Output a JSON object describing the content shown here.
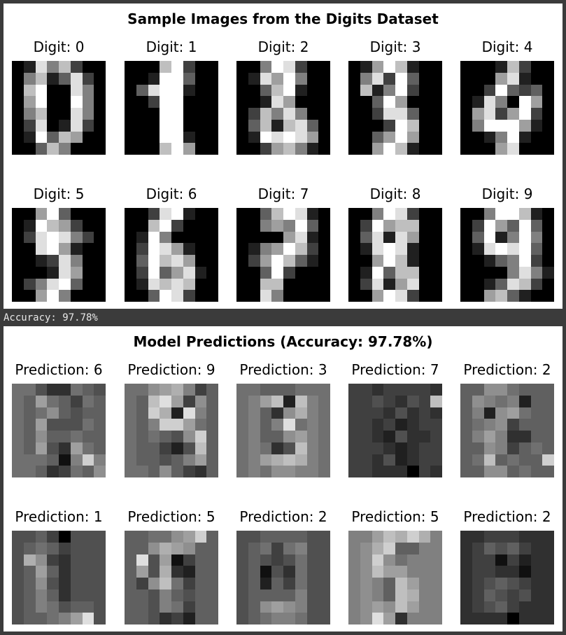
{
  "figure1": {
    "title": "Sample Images from the Digits Dataset",
    "panels": [
      {
        "label": "Digit: 0",
        "pixels": [
          0,
          2,
          14,
          8,
          12,
          4,
          0,
          0,
          0,
          8,
          12,
          2,
          6,
          14,
          4,
          0,
          0,
          12,
          16,
          0,
          0,
          14,
          8,
          0,
          0,
          10,
          16,
          0,
          0,
          16,
          8,
          0,
          0,
          8,
          12,
          0,
          0,
          14,
          8,
          0,
          0,
          4,
          14,
          0,
          2,
          14,
          4,
          0,
          0,
          2,
          16,
          6,
          12,
          10,
          0,
          0,
          0,
          0,
          6,
          12,
          8,
          0,
          0,
          0
        ]
      },
      {
        "label": "Digit: 1",
        "pixels": [
          0,
          0,
          0,
          12,
          16,
          4,
          0,
          0,
          0,
          0,
          2,
          16,
          16,
          6,
          0,
          0,
          0,
          6,
          14,
          16,
          16,
          2,
          0,
          0,
          0,
          0,
          4,
          16,
          16,
          0,
          0,
          0,
          0,
          0,
          0,
          16,
          16,
          0,
          0,
          0,
          0,
          0,
          0,
          16,
          16,
          0,
          0,
          0,
          0,
          0,
          0,
          16,
          16,
          2,
          0,
          0,
          0,
          0,
          0,
          12,
          16,
          10,
          0,
          0
        ]
      },
      {
        "label": "Digit: 2",
        "pixels": [
          0,
          0,
          8,
          16,
          14,
          4,
          0,
          0,
          0,
          2,
          14,
          10,
          16,
          8,
          0,
          0,
          0,
          0,
          6,
          12,
          16,
          2,
          0,
          0,
          0,
          0,
          2,
          14,
          10,
          0,
          0,
          0,
          0,
          4,
          12,
          8,
          14,
          8,
          0,
          0,
          0,
          6,
          12,
          2,
          12,
          14,
          6,
          0,
          0,
          2,
          16,
          14,
          16,
          14,
          10,
          0,
          0,
          0,
          4,
          10,
          12,
          8,
          2,
          0
        ]
      },
      {
        "label": "Digit: 3",
        "pixels": [
          0,
          2,
          10,
          16,
          12,
          2,
          0,
          0,
          0,
          8,
          14,
          4,
          16,
          6,
          0,
          0,
          0,
          12,
          2,
          8,
          16,
          4,
          0,
          0,
          0,
          0,
          6,
          16,
          10,
          0,
          0,
          0,
          0,
          0,
          4,
          14,
          14,
          6,
          0,
          0,
          0,
          0,
          0,
          4,
          16,
          12,
          0,
          0,
          0,
          0,
          6,
          10,
          16,
          10,
          0,
          0,
          0,
          0,
          10,
          16,
          12,
          2,
          0,
          0
        ]
      },
      {
        "label": "Digit: 4",
        "pixels": [
          0,
          0,
          0,
          2,
          12,
          4,
          0,
          0,
          0,
          0,
          0,
          10,
          14,
          2,
          0,
          0,
          0,
          0,
          4,
          16,
          6,
          4,
          6,
          0,
          0,
          2,
          14,
          8,
          0,
          16,
          10,
          0,
          0,
          10,
          14,
          4,
          10,
          16,
          4,
          0,
          0,
          8,
          16,
          16,
          16,
          10,
          2,
          0,
          0,
          0,
          2,
          8,
          16,
          2,
          0,
          0,
          0,
          0,
          0,
          10,
          14,
          0,
          0,
          0
        ]
      },
      {
        "label": "Digit: 5",
        "pixels": [
          0,
          0,
          10,
          16,
          6,
          0,
          0,
          0,
          0,
          2,
          16,
          12,
          10,
          4,
          0,
          0,
          0,
          4,
          14,
          16,
          14,
          8,
          4,
          0,
          0,
          0,
          14,
          16,
          10,
          2,
          0,
          0,
          0,
          0,
          2,
          4,
          14,
          8,
          0,
          0,
          0,
          0,
          0,
          2,
          14,
          10,
          0,
          0,
          0,
          4,
          8,
          14,
          16,
          6,
          0,
          0,
          0,
          0,
          10,
          16,
          8,
          0,
          0,
          0
        ]
      },
      {
        "label": "Digit: 6",
        "pixels": [
          0,
          0,
          4,
          14,
          16,
          2,
          0,
          0,
          0,
          0,
          12,
          16,
          4,
          0,
          0,
          0,
          0,
          2,
          16,
          8,
          0,
          0,
          0,
          0,
          0,
          4,
          16,
          14,
          10,
          2,
          0,
          0,
          0,
          6,
          16,
          12,
          14,
          10,
          0,
          0,
          0,
          4,
          16,
          6,
          10,
          14,
          2,
          0,
          0,
          2,
          14,
          12,
          14,
          12,
          0,
          0,
          0,
          0,
          6,
          16,
          14,
          4,
          0,
          0
        ]
      },
      {
        "label": "Digit: 7",
        "pixels": [
          0,
          0,
          6,
          12,
          16,
          14,
          2,
          0,
          0,
          0,
          8,
          10,
          8,
          16,
          6,
          0,
          0,
          0,
          0,
          0,
          10,
          14,
          2,
          0,
          0,
          2,
          8,
          10,
          16,
          12,
          4,
          0,
          0,
          4,
          10,
          16,
          12,
          6,
          2,
          0,
          0,
          0,
          6,
          16,
          4,
          0,
          0,
          0,
          0,
          0,
          12,
          12,
          0,
          0,
          0,
          0,
          0,
          0,
          14,
          8,
          0,
          0,
          0,
          0
        ]
      },
      {
        "label": "Digit: 8",
        "pixels": [
          0,
          0,
          8,
          16,
          14,
          4,
          0,
          0,
          0,
          4,
          16,
          10,
          12,
          12,
          0,
          0,
          0,
          6,
          14,
          2,
          14,
          10,
          0,
          0,
          0,
          2,
          14,
          16,
          14,
          2,
          0,
          0,
          0,
          0,
          10,
          16,
          12,
          2,
          0,
          0,
          0,
          2,
          16,
          6,
          12,
          12,
          0,
          0,
          0,
          4,
          14,
          2,
          10,
          14,
          0,
          0,
          0,
          0,
          10,
          16,
          14,
          4,
          0,
          0
        ]
      },
      {
        "label": "Digit: 9",
        "pixels": [
          0,
          0,
          8,
          16,
          16,
          12,
          2,
          0,
          0,
          4,
          16,
          10,
          6,
          16,
          6,
          0,
          0,
          6,
          16,
          2,
          8,
          16,
          8,
          0,
          0,
          2,
          14,
          16,
          14,
          16,
          6,
          0,
          0,
          0,
          2,
          6,
          8,
          16,
          4,
          0,
          0,
          0,
          0,
          0,
          8,
          14,
          8,
          2,
          0,
          0,
          2,
          6,
          14,
          12,
          4,
          0,
          0,
          0,
          10,
          12,
          6,
          2,
          0,
          0
        ]
      }
    ]
  },
  "output_line": "Accuracy: 97.78%",
  "figure2": {
    "title": "Model Predictions (Accuracy: 97.78%)",
    "panels": [
      {
        "label": "Prediction: 6",
        "pixels": [
          7,
          7,
          5,
          3,
          3,
          7,
          6,
          5,
          7,
          6,
          10,
          7,
          6,
          4,
          7,
          6,
          7,
          6,
          7,
          9,
          6,
          5,
          6,
          6,
          7,
          6,
          10,
          5,
          5,
          5,
          7,
          6,
          7,
          6,
          9,
          6,
          6,
          7,
          6,
          6,
          7,
          6,
          10,
          5,
          3,
          10,
          7,
          6,
          7,
          7,
          7,
          6,
          1,
          8,
          13,
          8,
          7,
          7,
          6,
          3,
          4,
          7,
          6,
          9
        ]
      },
      {
        "label": "Prediction: 9",
        "pixels": [
          7,
          7,
          9,
          10,
          11,
          8,
          4,
          6,
          7,
          6,
          12,
          14,
          10,
          4,
          9,
          6,
          7,
          6,
          13,
          11,
          2,
          14,
          8,
          6,
          7,
          6,
          8,
          13,
          13,
          10,
          7,
          6,
          7,
          6,
          7,
          6,
          5,
          9,
          13,
          6,
          7,
          6,
          6,
          4,
          2,
          5,
          12,
          6,
          7,
          6,
          6,
          5,
          6,
          8,
          10,
          6,
          7,
          7,
          6,
          9,
          6,
          4,
          3,
          6
        ]
      },
      {
        "label": "Prediction: 3",
        "pixels": [
          7,
          7,
          6,
          6,
          6,
          7,
          7,
          7,
          7,
          8,
          10,
          12,
          2,
          12,
          8,
          7,
          7,
          8,
          6,
          3,
          9,
          11,
          8,
          7,
          7,
          8,
          6,
          8,
          14,
          7,
          8,
          7,
          7,
          8,
          6,
          6,
          9,
          10,
          8,
          7,
          7,
          8,
          7,
          3,
          5,
          12,
          8,
          7,
          7,
          8,
          10,
          11,
          12,
          11,
          8,
          7,
          7,
          8,
          7,
          9,
          9,
          8,
          8,
          7
        ]
      },
      {
        "label": "Prediction: 7",
        "pixels": [
          4,
          4,
          3,
          4,
          4,
          4,
          4,
          3,
          4,
          4,
          5,
          4,
          3,
          5,
          4,
          12,
          4,
          4,
          4,
          3,
          5,
          3,
          4,
          3,
          4,
          4,
          3,
          4,
          2,
          3,
          4,
          4,
          4,
          4,
          3,
          2,
          5,
          3,
          3,
          4,
          4,
          4,
          4,
          3,
          2,
          3,
          4,
          4,
          4,
          4,
          3,
          5,
          2,
          3,
          4,
          4,
          4,
          4,
          3,
          3,
          3,
          0,
          4,
          3
        ]
      },
      {
        "label": "Prediction: 2",
        "pixels": [
          6,
          6,
          9,
          9,
          7,
          6,
          6,
          6,
          6,
          9,
          8,
          7,
          8,
          2,
          6,
          6,
          6,
          8,
          2,
          9,
          10,
          7,
          6,
          6,
          6,
          7,
          8,
          9,
          4,
          6,
          6,
          6,
          6,
          8,
          10,
          8,
          3,
          3,
          6,
          6,
          6,
          6,
          9,
          8,
          4,
          6,
          7,
          6,
          6,
          7,
          12,
          6,
          7,
          6,
          6,
          13,
          6,
          6,
          9,
          9,
          6,
          7,
          6,
          6
        ]
      },
      {
        "label": "Prediction: 1",
        "pixels": [
          5,
          5,
          6,
          4,
          0,
          5,
          5,
          5,
          5,
          6,
          7,
          6,
          4,
          5,
          5,
          5,
          5,
          11,
          9,
          4,
          3,
          5,
          5,
          5,
          5,
          6,
          10,
          6,
          3,
          5,
          5,
          5,
          5,
          6,
          9,
          5,
          3,
          5,
          5,
          5,
          5,
          6,
          8,
          6,
          3,
          5,
          5,
          5,
          5,
          6,
          8,
          7,
          5,
          6,
          6,
          5,
          5,
          6,
          6,
          7,
          8,
          10,
          14,
          5
        ]
      },
      {
        "label": "Prediction: 5",
        "pixels": [
          6,
          6,
          7,
          7,
          9,
          10,
          13,
          6,
          6,
          6,
          9,
          11,
          10,
          9,
          6,
          6,
          6,
          14,
          5,
          10,
          1,
          4,
          6,
          6,
          6,
          10,
          5,
          11,
          3,
          2,
          6,
          6,
          6,
          4,
          9,
          12,
          7,
          4,
          6,
          6,
          6,
          6,
          5,
          8,
          6,
          5,
          6,
          6,
          6,
          6,
          5,
          8,
          7,
          4,
          6,
          6,
          6,
          6,
          5,
          3,
          4,
          2,
          6,
          6
        ]
      },
      {
        "label": "Prediction: 2",
        "pixels": [
          5,
          5,
          6,
          6,
          6,
          6,
          5,
          5,
          5,
          6,
          7,
          4,
          7,
          8,
          5,
          5,
          5,
          6,
          5,
          4,
          5,
          7,
          5,
          5,
          5,
          6,
          1,
          5,
          3,
          7,
          5,
          5,
          5,
          6,
          2,
          6,
          4,
          7,
          5,
          5,
          5,
          6,
          6,
          6,
          6,
          8,
          5,
          5,
          5,
          6,
          9,
          10,
          9,
          8,
          5,
          5,
          5,
          6,
          7,
          8,
          8,
          7,
          5,
          5
        ]
      },
      {
        "label": "Prediction: 5",
        "pixels": [
          8,
          8,
          10,
          12,
          11,
          13,
          11,
          8,
          8,
          9,
          11,
          13,
          6,
          6,
          8,
          8,
          8,
          9,
          13,
          9,
          7,
          8,
          8,
          8,
          8,
          9,
          12,
          10,
          10,
          8,
          8,
          8,
          8,
          9,
          8,
          6,
          12,
          10,
          8,
          8,
          8,
          9,
          8,
          6,
          12,
          11,
          8,
          8,
          8,
          9,
          10,
          9,
          12,
          10,
          8,
          8,
          8,
          9,
          14,
          10,
          3,
          8,
          8,
          8
        ]
      },
      {
        "label": "Prediction: 2",
        "pixels": [
          3,
          3,
          4,
          4,
          4,
          3,
          3,
          3,
          3,
          4,
          6,
          5,
          6,
          4,
          3,
          3,
          3,
          4,
          4,
          1,
          4,
          2,
          3,
          3,
          3,
          4,
          4,
          3,
          3,
          1,
          3,
          3,
          3,
          4,
          5,
          6,
          5,
          4,
          3,
          3,
          3,
          4,
          6,
          5,
          4,
          5,
          3,
          3,
          3,
          4,
          5,
          6,
          4,
          3,
          3,
          3,
          3,
          3,
          3,
          3,
          0,
          3,
          3,
          3
        ]
      }
    ]
  }
}
